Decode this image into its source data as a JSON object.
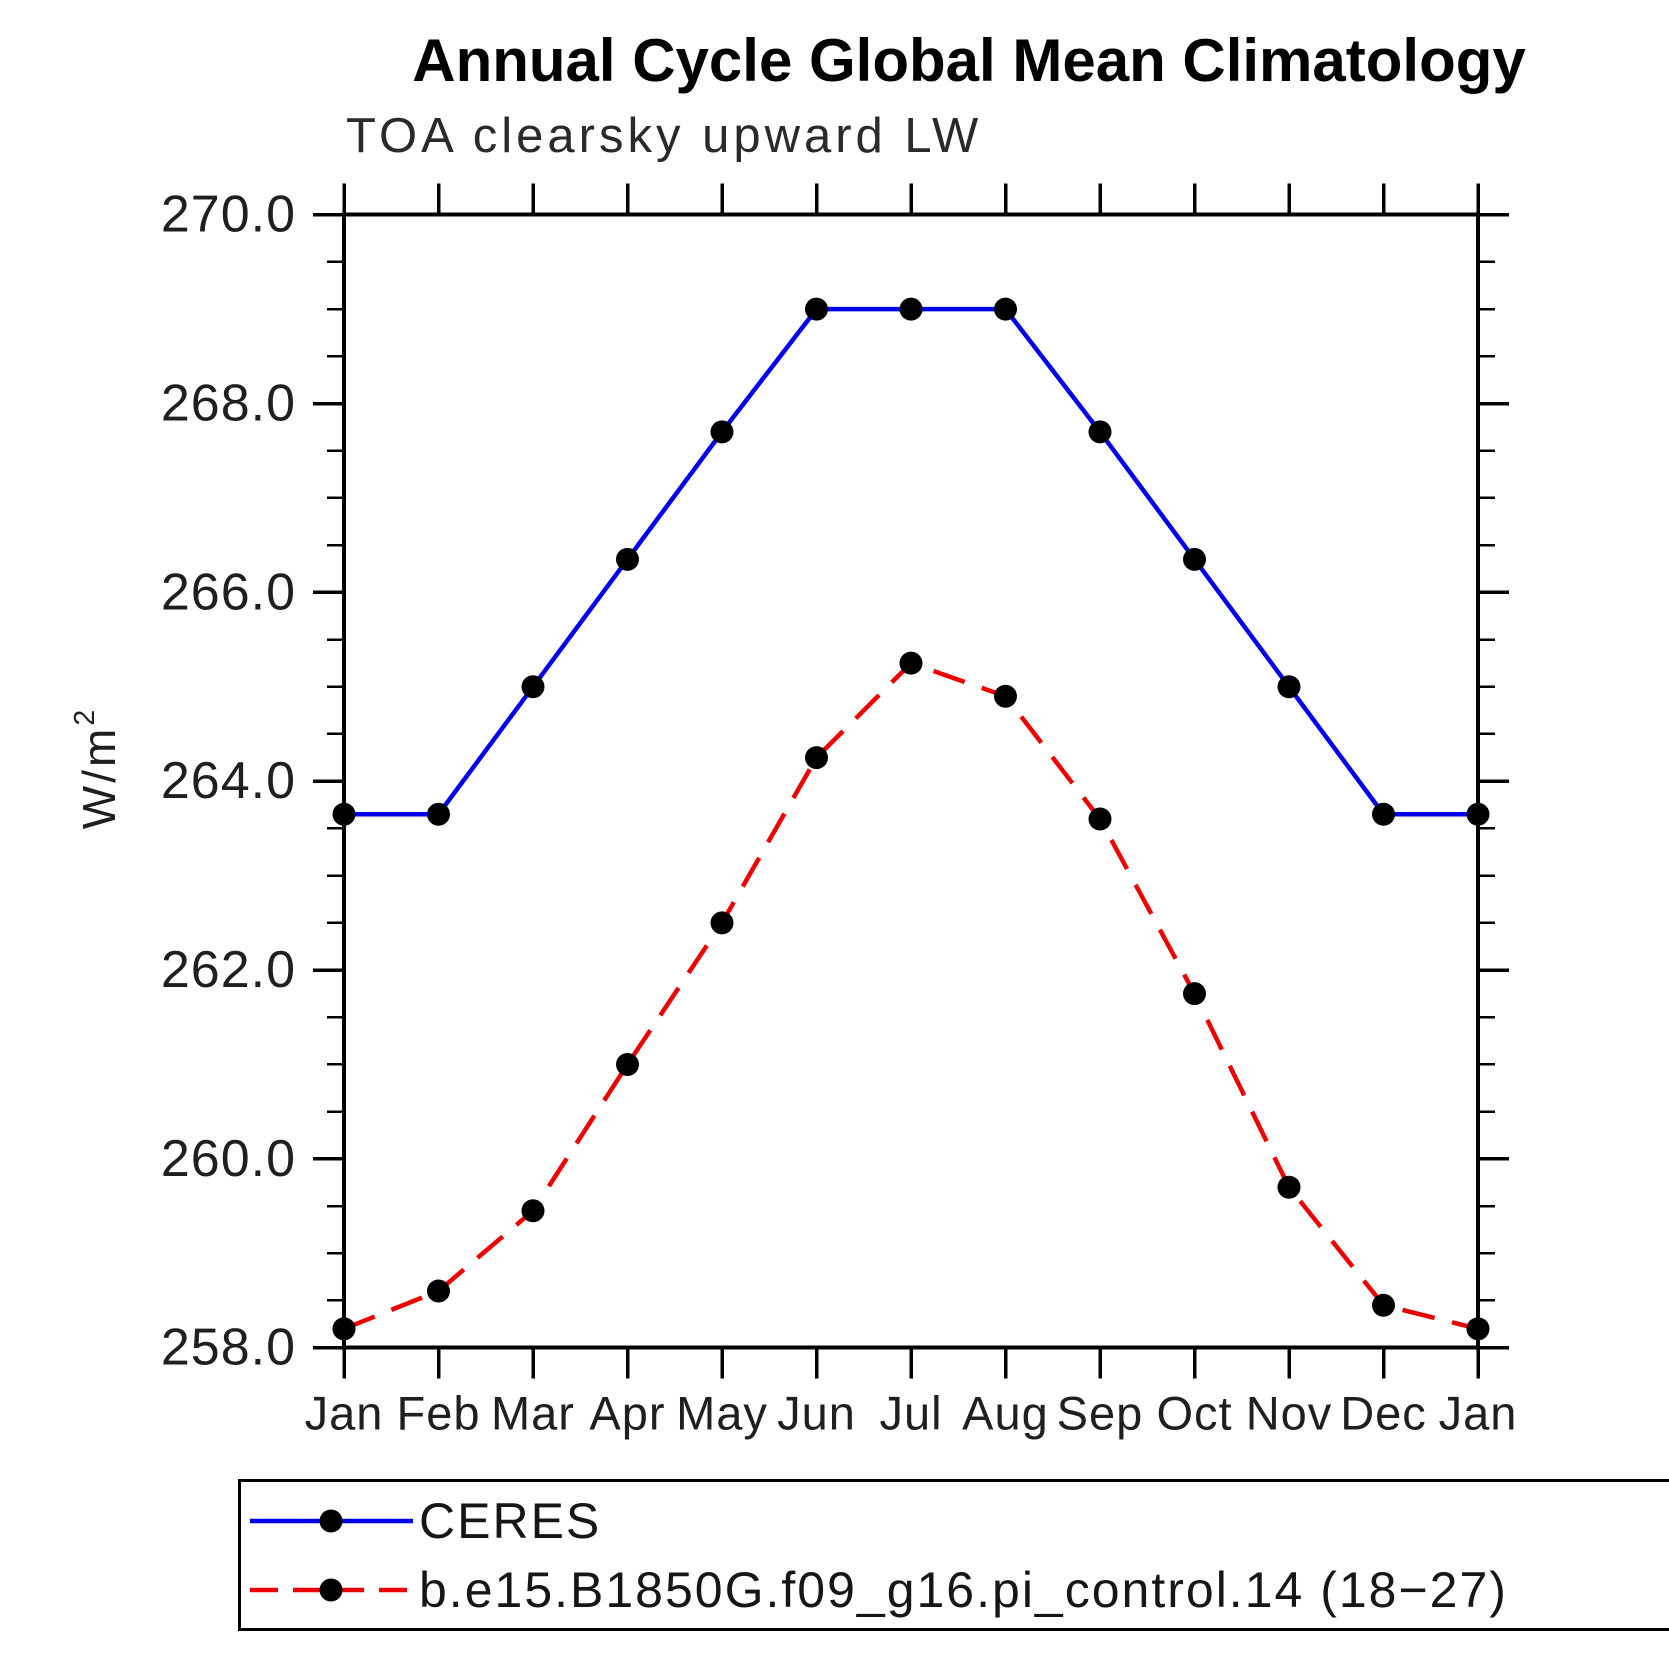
{
  "title": "Annual Cycle Global Mean Climatology",
  "subtitle": "TOA clearsky upward LW",
  "y_axis": {
    "label_base": "W/m",
    "label_exponent": "2",
    "tick_labels": [
      "258.0",
      "260.0",
      "262.0",
      "264.0",
      "266.0",
      "268.0",
      "270.0"
    ]
  },
  "chart_data": {
    "type": "line",
    "title": "Annual Cycle Global Mean Climatology",
    "subtitle": "TOA clearsky upward LW",
    "xlabel": "",
    "ylabel": "W/m2",
    "categories": [
      "Jan",
      "Feb",
      "Mar",
      "Apr",
      "May",
      "Jun",
      "Jul",
      "Aug",
      "Sep",
      "Oct",
      "Nov",
      "Dec",
      "Jan"
    ],
    "series": [
      {
        "name": "CERES",
        "color": "#0000ee",
        "line_style": "solid",
        "marker_color": "#000000",
        "values": [
          263.65,
          263.65,
          265.0,
          266.35,
          267.7,
          269.0,
          269.0,
          269.0,
          267.7,
          266.35,
          265.0,
          263.65,
          263.65
        ]
      },
      {
        "name": "b.e15.B1850G.f09_g16.pi_control.14 (18−27)",
        "color": "#ee0000",
        "line_style": "dashed",
        "marker_color": "#000000",
        "values": [
          258.2,
          258.6,
          259.45,
          261.0,
          262.5,
          264.25,
          265.25,
          264.9,
          263.6,
          261.75,
          259.7,
          258.45,
          258.2
        ]
      }
    ],
    "ylim": [
      258.0,
      270.0
    ],
    "ytick_major": 2.0,
    "ytick_minor": 0.5,
    "grid": false,
    "legend_position": "bottom-left"
  }
}
